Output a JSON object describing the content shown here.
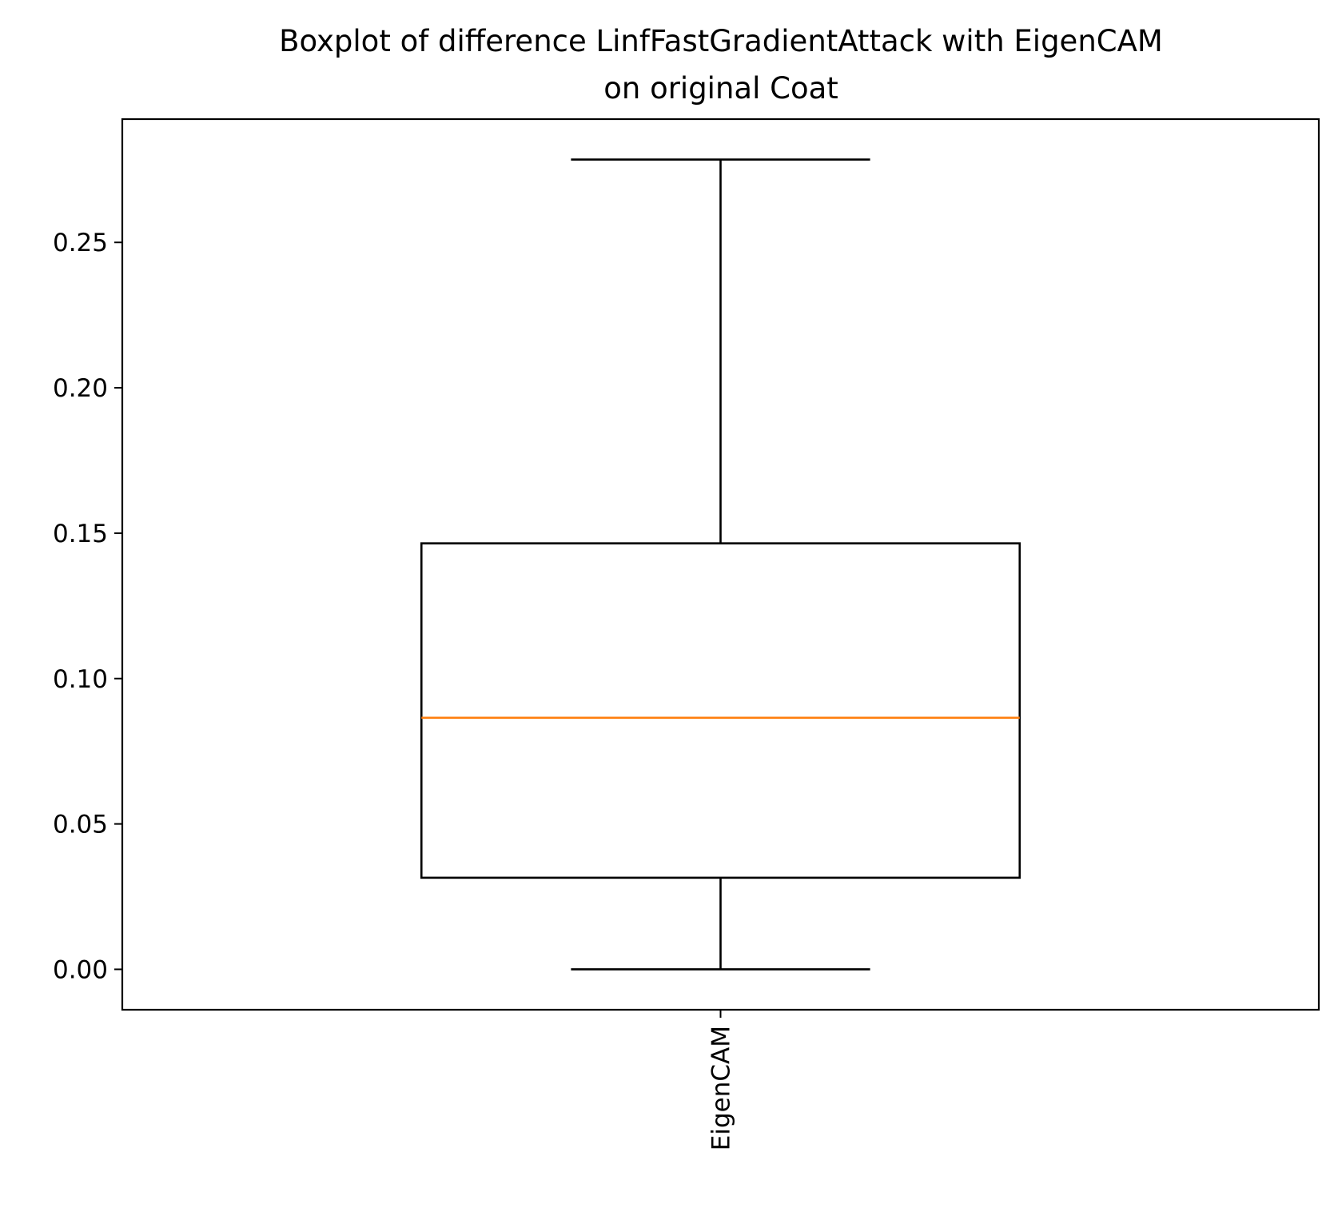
{
  "chart_data": {
    "type": "boxplot",
    "title_lines": [
      "Boxplot of difference LinfFastGradientAttack with EigenCAM",
      "on original Coat"
    ],
    "xlabel": "",
    "ylabel": "",
    "categories": [
      "EigenCAM"
    ],
    "boxes": [
      {
        "category": "EigenCAM",
        "whisker_low": 0.0,
        "q1": 0.0315,
        "median": 0.0865,
        "q3": 0.1465,
        "whisker_high": 0.2785
      }
    ],
    "ylim": [
      -0.0139,
      0.2924
    ],
    "yticks": [
      0.0,
      0.05,
      0.1,
      0.15,
      0.2,
      0.25
    ],
    "ytick_labels": [
      "0.00",
      "0.05",
      "0.10",
      "0.15",
      "0.20",
      "0.25"
    ],
    "grid": false,
    "legend": "none",
    "x_tick_rotation": "vertical",
    "colors": {
      "box": "#000000",
      "median": "#ff7f0e",
      "whisker": "#000000"
    }
  }
}
